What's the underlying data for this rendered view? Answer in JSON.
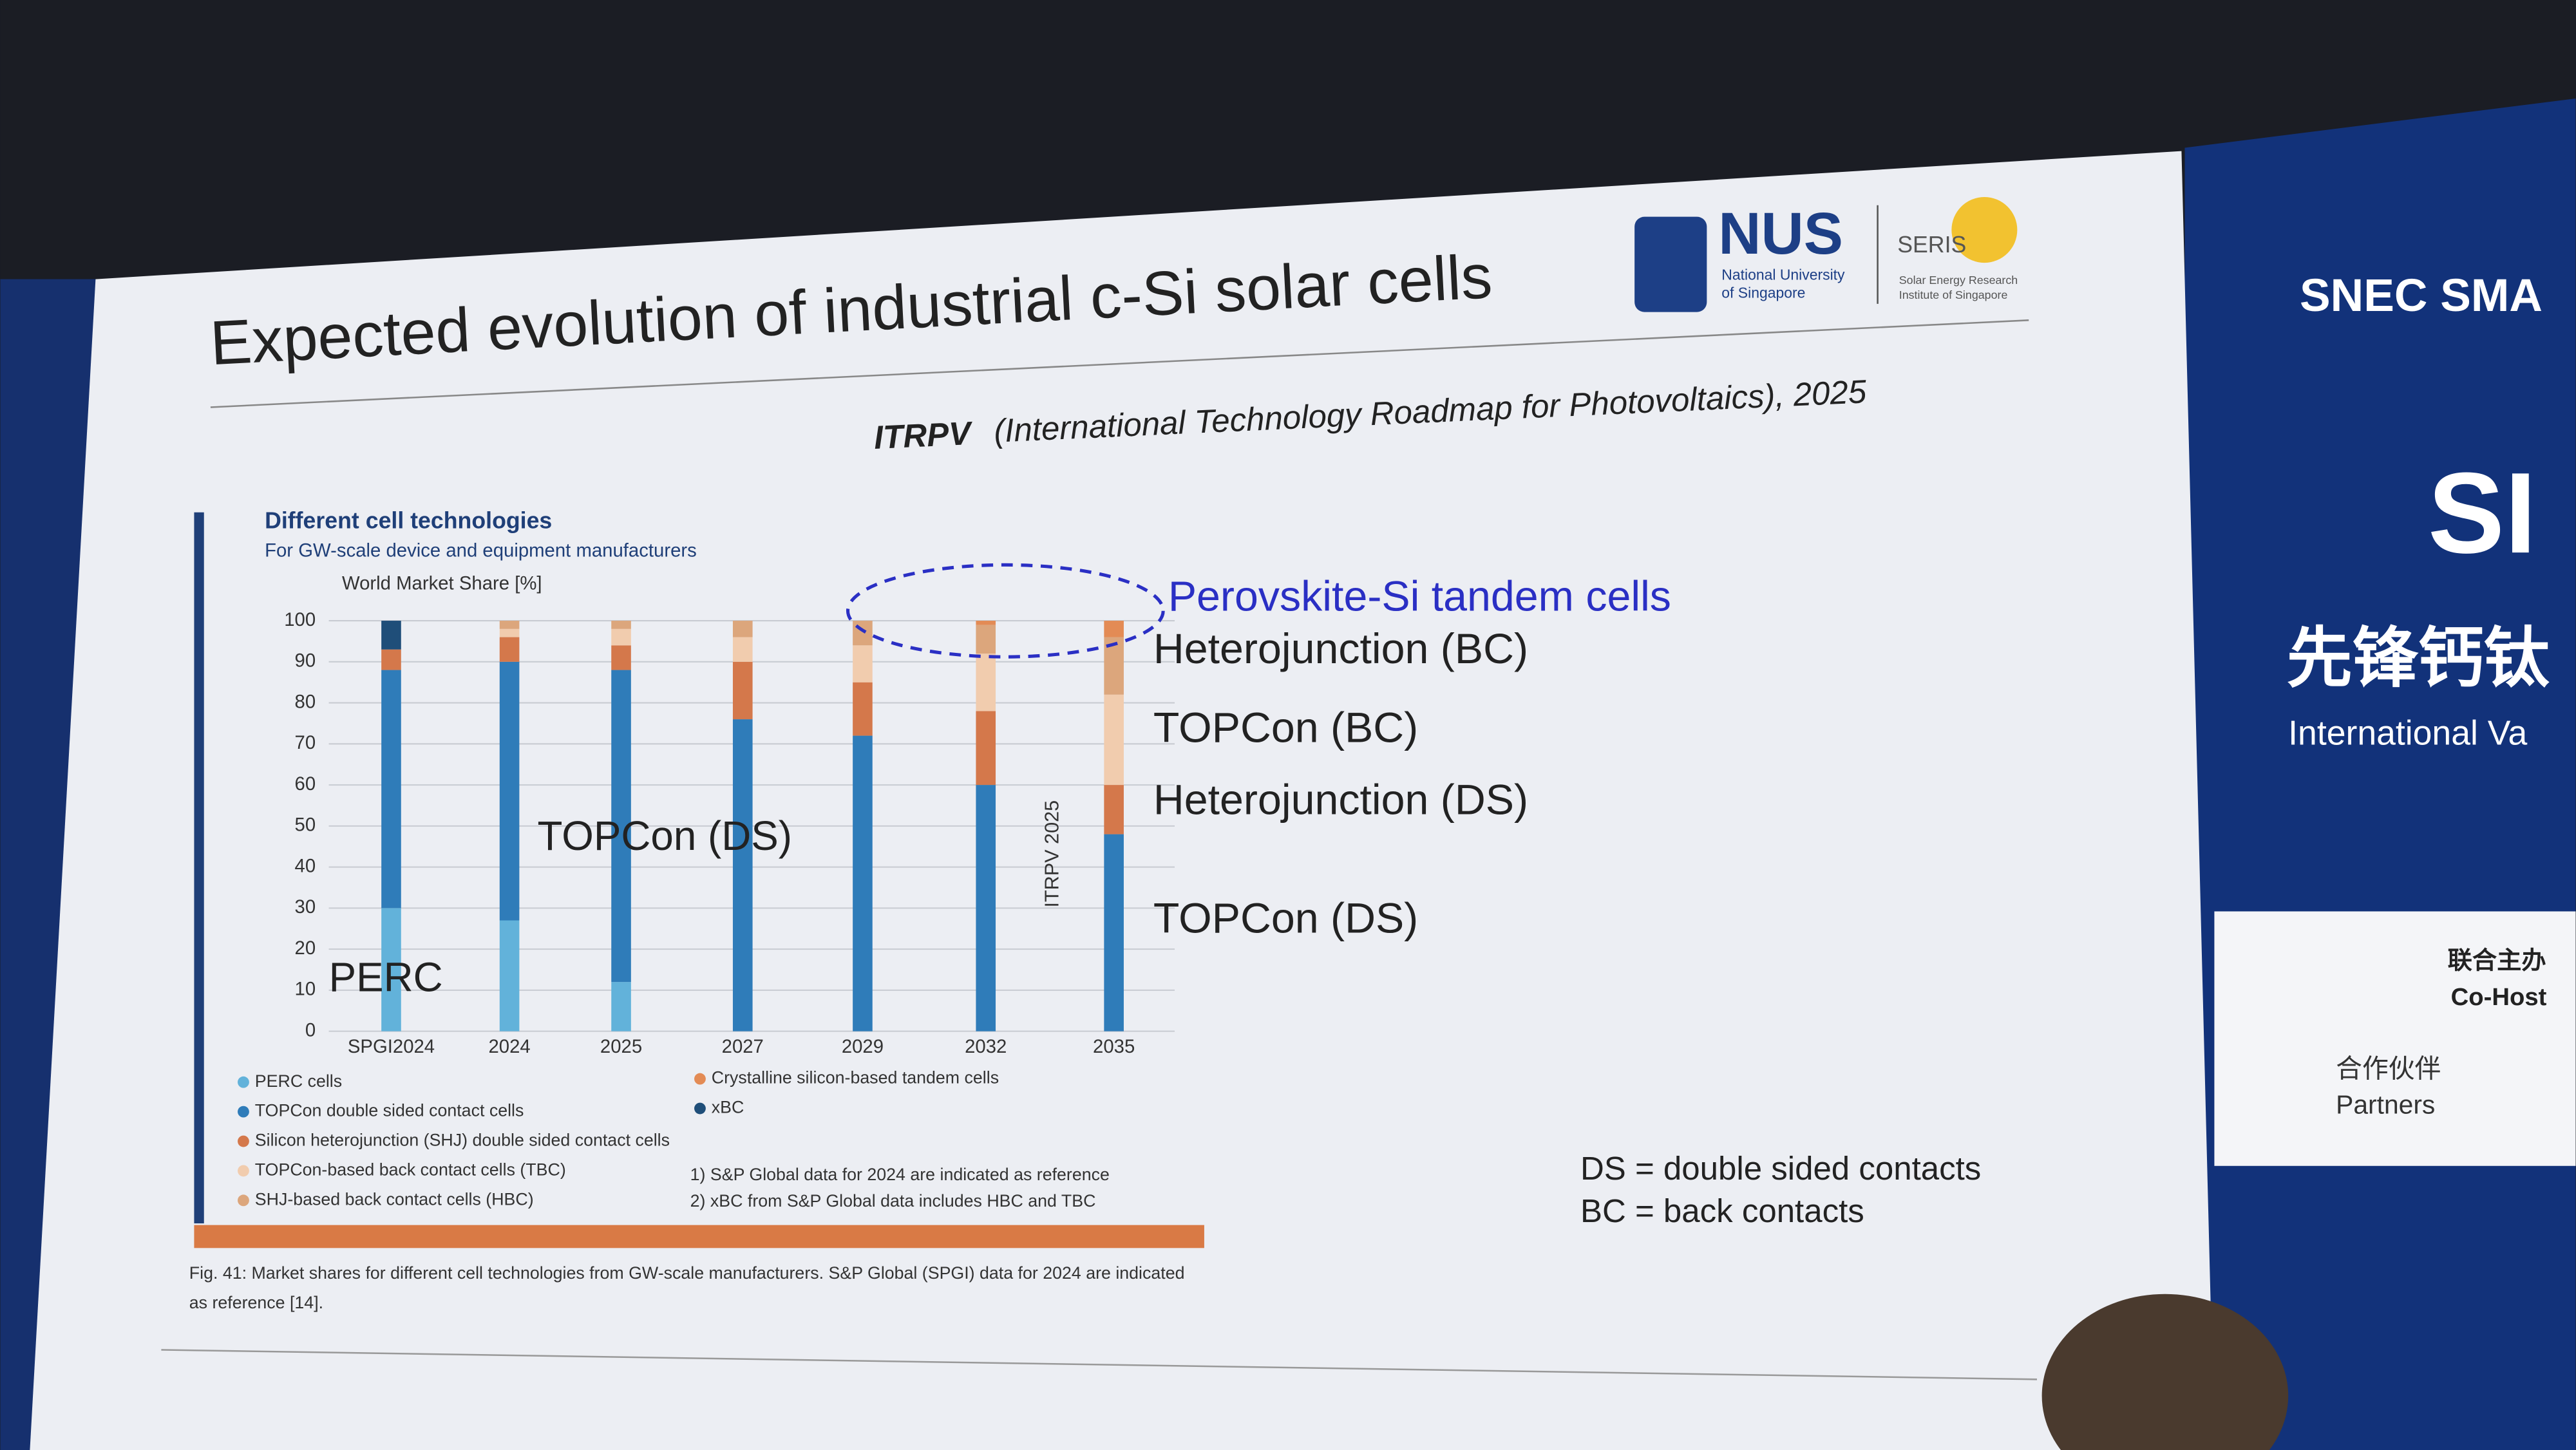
{
  "slide": {
    "title": "Expected evolution of industrial c-Si solar cells",
    "source_prefix": "ITRPV",
    "source_rest": "(International Technology Roadmap for Photovoltaics), 2025",
    "logo_nus": "NUS",
    "logo_nus_sub1": "National University",
    "logo_nus_sub2": "of Singapore",
    "logo_seris": "SERIS",
    "logo_seris_sub1": "Solar Energy Research",
    "logo_seris_sub2": "Institute of Singapore",
    "labels": [
      {
        "text": "Perovskite-Si tandem cells",
        "color": "#2a2fc4"
      },
      {
        "text": "Heterojunction (BC)",
        "color": "#222222"
      },
      {
        "text": "TOPCon (BC)",
        "color": "#222222"
      },
      {
        "text": "Heterojunction (DS)",
        "color": "#222222"
      },
      {
        "text": "TOPCon (DS)",
        "color": "#222222"
      }
    ],
    "abbrev": [
      "DS = double sided contacts",
      "BC = back contacts"
    ],
    "caption_line1": "Fig. 41: Market shares for different cell technologies from GW-scale manufacturers. S&P Global (SPGI) data for 2024 are indicated",
    "caption_line2": "as reference [14]."
  },
  "background_screen": {
    "brand": "SNEC SMA",
    "big": "SI",
    "cn_title": "先锋钙钛",
    "en_title": "International Va",
    "cohost_cn": "联合主办",
    "cohost_en": "Co-Host",
    "partners_cn": "合作伙伴",
    "partners_en": "Partners"
  },
  "chart_data": {
    "type": "bar",
    "stacked": true,
    "title": "Different cell technologies",
    "subtitle": "For GW-scale device and equipment manufacturers",
    "y_label": "World Market Share [%]",
    "categories": [
      "SPGI2024",
      "2024",
      "2025",
      "2027",
      "2029",
      "2032",
      "2035"
    ],
    "series": [
      {
        "name": "PERC cells",
        "color": "#62b2da",
        "values": [
          30,
          27,
          12,
          0,
          0,
          0,
          0
        ]
      },
      {
        "name": "TOPCon double sided contact cells",
        "color": "#2f7cb9",
        "values": [
          58,
          63,
          76,
          76,
          72,
          60,
          48
        ]
      },
      {
        "name": "Silicon heterojunction (SHJ) double sided contact cells",
        "color": "#d4784b",
        "values": [
          5,
          6,
          6,
          14,
          13,
          18,
          12
        ]
      },
      {
        "name": "TOPCon-based back contact cells (TBC)",
        "color": "#f1ccae",
        "values": [
          0,
          2,
          4,
          6,
          9,
          14,
          22
        ]
      },
      {
        "name": "SHJ-based back contact cells (HBC)",
        "color": "#dca67c",
        "values": [
          0,
          2,
          2,
          4,
          6,
          7,
          14
        ]
      },
      {
        "name": "Crystalline silicon-based tandem cells",
        "color": "#e38b55",
        "values": [
          0,
          0,
          0,
          0,
          0,
          1,
          4
        ]
      },
      {
        "name": "xBC",
        "color": "#1f4e79",
        "values": [
          7,
          0,
          0,
          0,
          0,
          0,
          0
        ]
      }
    ],
    "ylim": [
      0,
      100
    ],
    "yticks": [
      0,
      10,
      20,
      30,
      40,
      50,
      60,
      70,
      80,
      90,
      100
    ],
    "grid": true,
    "annotations": [
      "PERC",
      "TOPCon (DS)",
      "ITRPV 2025"
    ],
    "notes": [
      "1) S&P Global data for 2024 are indicated as reference",
      "2) xBC from S&P Global data includes HBC and TBC"
    ]
  }
}
